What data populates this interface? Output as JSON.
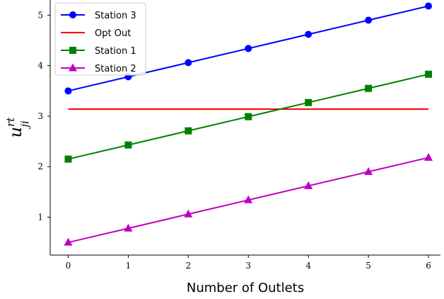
{
  "chart_data": {
    "type": "line",
    "xlabel": "Number of Outlets",
    "ylabel": "u",
    "ylabel_sup": "rt",
    "ylabel_sub": "ji",
    "x": [
      0,
      1,
      2,
      3,
      4,
      5,
      6
    ],
    "xlim": [
      -0.3,
      6.2
    ],
    "ylim": [
      0.25,
      5.3
    ],
    "xticks": [
      "0",
      "1",
      "2",
      "3",
      "4",
      "5",
      "6"
    ],
    "yticks": [
      "1",
      "2",
      "3",
      "4",
      "5"
    ],
    "grid": false,
    "legend_placement": "top-left",
    "series": [
      {
        "name": "Station 3",
        "color": "#0000ff",
        "marker": "circle",
        "values": [
          3.5,
          3.78,
          4.06,
          4.34,
          4.62,
          4.9,
          5.18
        ]
      },
      {
        "name": "Opt Out",
        "color": "#ff0000",
        "marker": "none",
        "values": [
          3.14,
          3.14,
          3.14,
          3.14,
          3.14,
          3.14,
          3.14
        ]
      },
      {
        "name": "Station 1",
        "color": "#008000",
        "marker": "square",
        "values": [
          2.15,
          2.43,
          2.71,
          2.99,
          3.27,
          3.55,
          3.83
        ]
      },
      {
        "name": "Station 2",
        "color": "#bf00bf",
        "marker": "triangle",
        "values": [
          0.5,
          0.78,
          1.06,
          1.34,
          1.62,
          1.9,
          2.18
        ]
      }
    ]
  }
}
